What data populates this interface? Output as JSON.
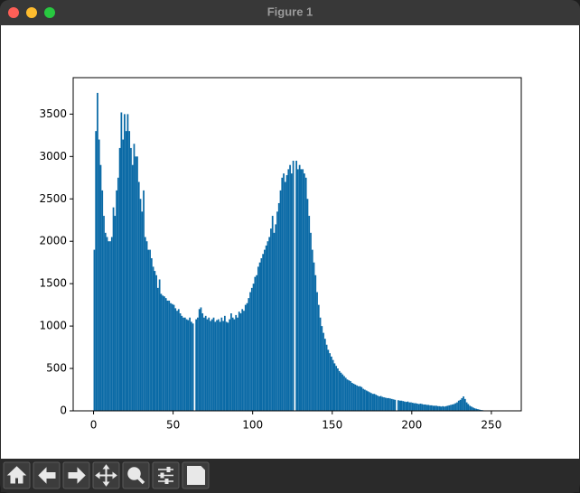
{
  "window": {
    "title": "Figure 1"
  },
  "chart_data": {
    "type": "histogram",
    "color": "#0a6aa6",
    "bins": [
      0,
      1,
      2,
      3,
      4,
      5,
      6,
      7,
      8,
      9,
      10,
      11,
      12,
      13,
      14,
      15,
      16,
      17,
      18,
      19,
      20,
      21,
      22,
      23,
      24,
      25,
      26,
      27,
      28,
      29,
      30,
      31,
      32,
      33,
      34,
      35,
      36,
      37,
      38,
      39,
      40,
      41,
      42,
      43,
      44,
      45,
      46,
      47,
      48,
      49,
      50,
      51,
      52,
      53,
      54,
      55,
      56,
      57,
      58,
      59,
      60,
      61,
      62,
      63,
      64,
      65,
      66,
      67,
      68,
      69,
      70,
      71,
      72,
      73,
      74,
      75,
      76,
      77,
      78,
      79,
      80,
      81,
      82,
      83,
      84,
      85,
      86,
      87,
      88,
      89,
      90,
      91,
      92,
      93,
      94,
      95,
      96,
      97,
      98,
      99,
      100,
      101,
      102,
      103,
      104,
      105,
      106,
      107,
      108,
      109,
      110,
      111,
      112,
      113,
      114,
      115,
      116,
      117,
      118,
      119,
      120,
      121,
      122,
      123,
      124,
      125,
      126,
      127,
      128,
      129,
      130,
      131,
      132,
      133,
      134,
      135,
      136,
      137,
      138,
      139,
      140,
      141,
      142,
      143,
      144,
      145,
      146,
      147,
      148,
      149,
      150,
      151,
      152,
      153,
      154,
      155,
      156,
      157,
      158,
      159,
      160,
      161,
      162,
      163,
      164,
      165,
      166,
      167,
      168,
      169,
      170,
      171,
      172,
      173,
      174,
      175,
      176,
      177,
      178,
      179,
      180,
      181,
      182,
      183,
      184,
      185,
      186,
      187,
      188,
      189,
      190,
      191,
      192,
      193,
      194,
      195,
      196,
      197,
      198,
      199,
      200,
      201,
      202,
      203,
      204,
      205,
      206,
      207,
      208,
      209,
      210,
      211,
      212,
      213,
      214,
      215,
      216,
      217,
      218,
      219,
      220,
      221,
      222,
      223,
      224,
      225,
      226,
      227,
      228,
      229,
      230,
      231,
      232,
      233,
      234,
      235,
      236,
      237,
      238,
      239,
      240,
      241,
      242,
      243,
      244,
      245,
      246,
      247,
      248,
      249,
      250,
      251,
      252,
      253,
      254,
      255,
      256
    ],
    "counts": [
      1900,
      3300,
      3750,
      3200,
      2900,
      2600,
      2300,
      2100,
      2050,
      2000,
      2000,
      2050,
      2400,
      2300,
      2600,
      2750,
      3100,
      3520,
      3200,
      3500,
      3300,
      3500,
      3300,
      3100,
      2900,
      3150,
      3000,
      3000,
      2700,
      2500,
      2350,
      2600,
      2050,
      2000,
      1900,
      1900,
      1800,
      1700,
      1650,
      1600,
      1450,
      1550,
      1380,
      1360,
      1350,
      1330,
      1300,
      1300,
      1270,
      1260,
      1250,
      1210,
      1180,
      1200,
      1150,
      1120,
      1100,
      1100,
      1080,
      1070,
      1100,
      1050,
      1030,
      0,
      1080,
      1100,
      1200,
      1220,
      1150,
      1100,
      1120,
      1080,
      1100,
      1060,
      1080,
      1100,
      1050,
      1070,
      1080,
      1050,
      1100,
      1060,
      1120,
      1050,
      1040,
      1080,
      1150,
      1100,
      1080,
      1130,
      1100,
      1170,
      1150,
      1200,
      1180,
      1250,
      1270,
      1330,
      1400,
      1450,
      1500,
      1580,
      1600,
      1700,
      1750,
      1800,
      1850,
      1900,
      1950,
      2000,
      2050,
      2150,
      2300,
      2100,
      2200,
      2350,
      2450,
      2600,
      2750,
      2800,
      2700,
      2780,
      2850,
      2900,
      2800,
      2950,
      0,
      2950,
      2850,
      2900,
      2850,
      2850,
      2800,
      2750,
      2500,
      2300,
      2100,
      1900,
      1750,
      1600,
      1400,
      1250,
      1100,
      1000,
      920,
      850,
      780,
      720,
      680,
      640,
      600,
      560,
      530,
      500,
      470,
      450,
      430,
      410,
      390,
      370,
      360,
      350,
      330,
      320,
      310,
      300,
      290,
      290,
      280,
      260,
      250,
      240,
      230,
      220,
      210,
      200,
      200,
      190,
      180,
      170,
      175,
      165,
      160,
      155,
      150,
      150,
      145,
      140,
      135,
      130,
      0,
      125,
      120,
      120,
      115,
      110,
      105,
      110,
      100,
      100,
      95,
      90,
      90,
      85,
      80,
      85,
      80,
      75,
      75,
      70,
      70,
      65,
      65,
      60,
      60,
      60,
      55,
      55,
      50,
      55,
      50,
      55,
      60,
      65,
      70,
      75,
      80,
      90,
      100,
      120,
      130,
      150,
      170,
      140,
      100,
      80,
      60,
      50,
      40,
      30,
      25,
      20,
      15,
      10,
      8,
      5,
      3,
      2,
      1,
      0,
      0,
      0,
      0,
      0,
      0,
      0
    ],
    "xlim": [
      -12.8,
      268.8
    ],
    "xticks": [
      0,
      50,
      100,
      150,
      200,
      250
    ],
    "ylim": [
      0,
      3930
    ],
    "yticks": [
      0,
      500,
      1000,
      1500,
      2000,
      2500,
      3000,
      3500
    ]
  }
}
